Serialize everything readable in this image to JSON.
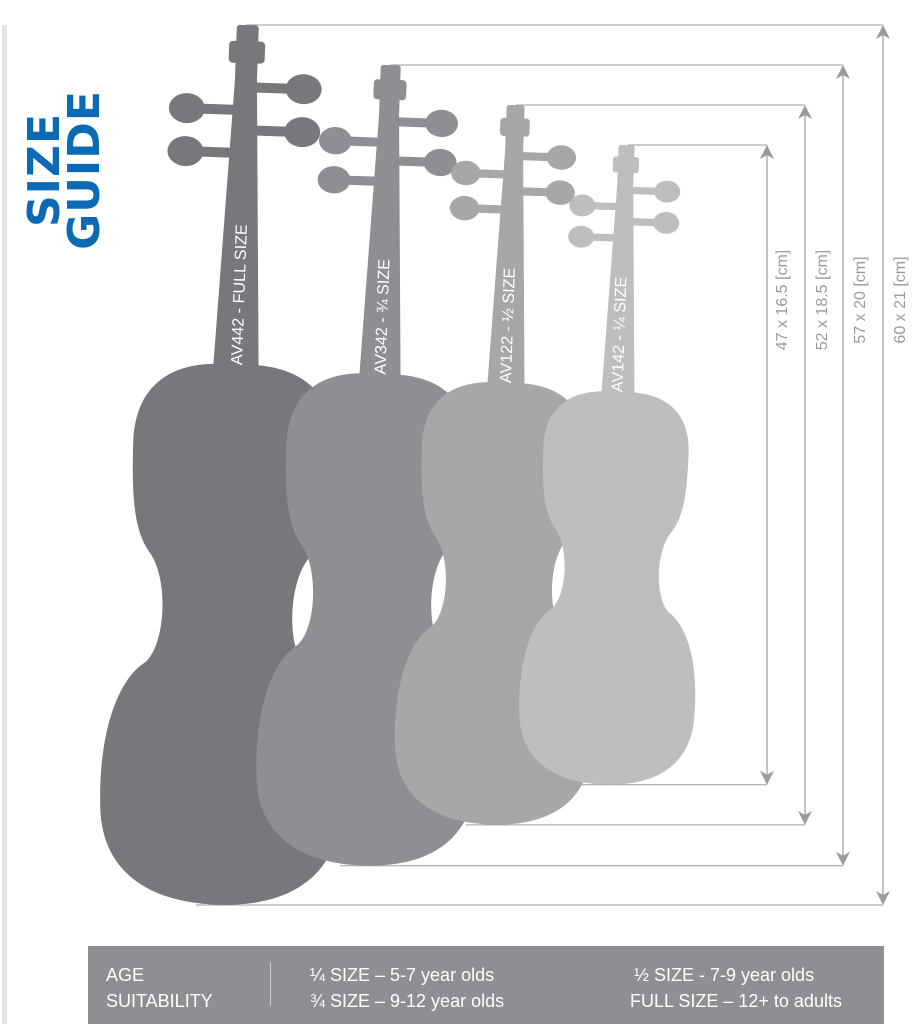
{
  "title": "SIZE GUIDE",
  "colors": {
    "title": "#0a6ab4",
    "full": "#77787b",
    "three_quarter": "#8e8f92",
    "half": "#a6a7a9",
    "quarter": "#bdbec0",
    "dimension": "#9a9b9d",
    "bar": "#8e8f92"
  },
  "violins": [
    {
      "label": "AV442 - FULL SIZE",
      "dimension": "60 x 21 [cm]",
      "length_cm": 60,
      "width_cm": 21
    },
    {
      "label": "AV342 - ¾ SIZE",
      "dimension": "57 x 20 [cm]",
      "length_cm": 57,
      "width_cm": 20
    },
    {
      "label": "AV122 - ½ SIZE",
      "dimension": "52 x 18.5 [cm]",
      "length_cm": 52,
      "width_cm": 18.5
    },
    {
      "label": "AV142 - ¼ SIZE",
      "dimension": "47 x 16.5 [cm]",
      "length_cm": 47,
      "width_cm": 16.5
    }
  ],
  "age": {
    "heading_line1": "AGE",
    "heading_line2": "SUITABILITY",
    "quarter": "¼ SIZE – 5-7 year olds",
    "three_quarter": "¾ SIZE – 9-12 year olds",
    "half": "½ SIZE - 7-9 year olds",
    "full": "FULL SIZE – 12+ to adults"
  }
}
